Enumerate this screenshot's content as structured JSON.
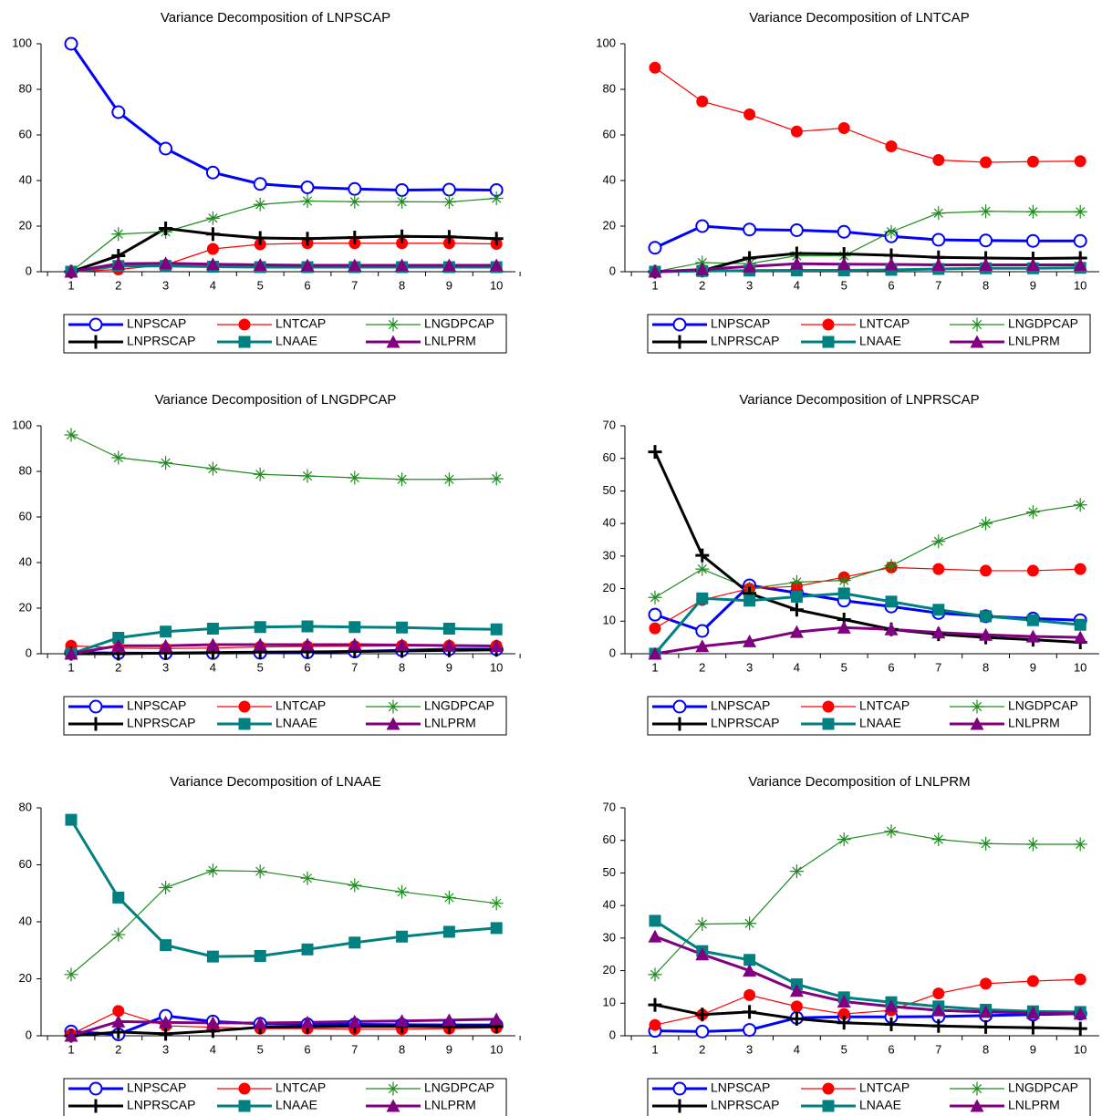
{
  "chart_data": [
    {
      "type": "line",
      "title": "Variance Decomposition of LNPSCAP",
      "categories": [
        1,
        2,
        3,
        4,
        5,
        6,
        7,
        8,
        9,
        10
      ],
      "ylim": [
        0,
        100
      ],
      "yticks": [
        0,
        20,
        40,
        60,
        80,
        100
      ],
      "series": [
        {
          "name": "LNPSCAP",
          "color": "#0000ff",
          "marker": "circle-open",
          "linewidth": 3,
          "values": [
            100,
            70,
            54,
            43.5,
            38.5,
            37,
            36.3,
            35.8,
            36,
            35.8
          ]
        },
        {
          "name": "LNTCAP",
          "color": "#ff0000",
          "marker": "circle",
          "linewidth": 1.2,
          "values": [
            0,
            1,
            3,
            10,
            12,
            12.5,
            12.5,
            12.5,
            12.5,
            12.2
          ]
        },
        {
          "name": "LNGDPCAP",
          "color": "#1e8c1e",
          "marker": "star",
          "linewidth": 1.2,
          "values": [
            0,
            16.5,
            17.5,
            23.5,
            29.5,
            31,
            30.7,
            30.7,
            30.6,
            32.2
          ]
        },
        {
          "name": "LNPRSCAP",
          "color": "#000000",
          "marker": "plus",
          "linewidth": 3,
          "values": [
            0,
            7,
            19,
            16.5,
            14.8,
            14.5,
            15,
            15.5,
            15.3,
            14.5
          ]
        },
        {
          "name": "LNAAE",
          "color": "#008080",
          "marker": "square",
          "linewidth": 3,
          "values": [
            0,
            2.5,
            2.5,
            2.2,
            2,
            2,
            2,
            2,
            2,
            2
          ]
        },
        {
          "name": "LNLPRM",
          "color": "#800080",
          "marker": "triangle",
          "linewidth": 3,
          "values": [
            0,
            3.5,
            3.7,
            3.3,
            3,
            2.8,
            2.8,
            2.8,
            2.8,
            2.8
          ]
        }
      ]
    },
    {
      "type": "line",
      "title": "Variance Decomposition of LNTCAP",
      "categories": [
        1,
        2,
        3,
        4,
        5,
        6,
        7,
        8,
        9,
        10
      ],
      "ylim": [
        0,
        100
      ],
      "yticks": [
        0,
        20,
        40,
        60,
        80,
        100
      ],
      "series": [
        {
          "name": "LNPSCAP",
          "color": "#0000ff",
          "marker": "circle-open",
          "linewidth": 3,
          "values": [
            10.5,
            20,
            18.5,
            18.2,
            17.5,
            15.5,
            14,
            13.7,
            13.5,
            13.5
          ]
        },
        {
          "name": "LNTCAP",
          "color": "#ff0000",
          "marker": "circle",
          "linewidth": 1.2,
          "values": [
            89.5,
            74.7,
            69,
            61.5,
            63,
            55,
            49,
            48,
            48.3,
            48.5
          ]
        },
        {
          "name": "LNGDPCAP",
          "color": "#1e8c1e",
          "marker": "star",
          "linewidth": 1.2,
          "values": [
            0,
            4,
            3.5,
            7,
            7,
            17.5,
            25.7,
            26.5,
            26.3,
            26.3
          ]
        },
        {
          "name": "LNPRSCAP",
          "color": "#000000",
          "marker": "plus",
          "linewidth": 3,
          "values": [
            0,
            0.5,
            6,
            8,
            7.8,
            7.2,
            6.3,
            6,
            5.8,
            6
          ]
        },
        {
          "name": "LNAAE",
          "color": "#008080",
          "marker": "square",
          "linewidth": 3,
          "values": [
            0,
            0.3,
            0.5,
            0.6,
            0.6,
            0.8,
            1.2,
            1.5,
            1.5,
            1.7
          ]
        },
        {
          "name": "LNLPRM",
          "color": "#800080",
          "marker": "triangle",
          "linewidth": 3,
          "values": [
            0,
            1,
            2.3,
            3.5,
            3.3,
            3.2,
            3,
            3,
            3,
            3
          ]
        }
      ]
    },
    {
      "type": "line",
      "title": "Variance Decomposition of LNGDPCAP",
      "categories": [
        1,
        2,
        3,
        4,
        5,
        6,
        7,
        8,
        9,
        10
      ],
      "ylim": [
        0,
        100
      ],
      "yticks": [
        0,
        20,
        40,
        60,
        80,
        100
      ],
      "series": [
        {
          "name": "LNPSCAP",
          "color": "#0000ff",
          "marker": "circle-open",
          "linewidth": 3,
          "values": [
            0.5,
            0.3,
            0.2,
            0.3,
            0.4,
            0.6,
            1,
            1.5,
            2,
            2
          ]
        },
        {
          "name": "LNTCAP",
          "color": "#ff0000",
          "marker": "circle",
          "linewidth": 1.2,
          "values": [
            3.5,
            2.5,
            2.3,
            2.5,
            3,
            3.2,
            3.3,
            3.5,
            3.5,
            3.5
          ]
        },
        {
          "name": "LNGDPCAP",
          "color": "#1e8c1e",
          "marker": "star",
          "linewidth": 1.2,
          "values": [
            96,
            86,
            83.7,
            81.2,
            78.7,
            78,
            77.2,
            76.5,
            76.5,
            76.8
          ]
        },
        {
          "name": "LNPRSCAP",
          "color": "#000000",
          "marker": "plus",
          "linewidth": 3,
          "values": [
            0,
            0,
            0.3,
            0.5,
            0.7,
            0.8,
            1,
            1.2,
            1.5,
            1.7
          ]
        },
        {
          "name": "LNAAE",
          "color": "#008080",
          "marker": "square",
          "linewidth": 3,
          "values": [
            0,
            7,
            9.7,
            11,
            11.7,
            12,
            11.7,
            11.5,
            11,
            10.7
          ]
        },
        {
          "name": "LNLPRM",
          "color": "#800080",
          "marker": "triangle",
          "linewidth": 3,
          "values": [
            0,
            3.5,
            3.5,
            4,
            4,
            4,
            4,
            3.8,
            3.6,
            3.4
          ]
        }
      ]
    },
    {
      "type": "line",
      "title": "Variance Decomposition of LNPRSCAP",
      "categories": [
        1,
        2,
        3,
        4,
        5,
        6,
        7,
        8,
        9,
        10
      ],
      "ylim": [
        0,
        70
      ],
      "yticks": [
        0,
        10,
        20,
        30,
        40,
        50,
        60,
        70
      ],
      "series": [
        {
          "name": "LNPSCAP",
          "color": "#0000ff",
          "marker": "circle-open",
          "linewidth": 3,
          "values": [
            12,
            7,
            21,
            18.7,
            16.3,
            14.5,
            12.5,
            11.5,
            10.8,
            10.3
          ]
        },
        {
          "name": "LNTCAP",
          "color": "#ff0000",
          "marker": "circle",
          "linewidth": 1.2,
          "values": [
            7.8,
            16.5,
            20,
            20.7,
            23.5,
            26.5,
            26,
            25.5,
            25.5,
            26
          ]
        },
        {
          "name": "LNGDPCAP",
          "color": "#1e8c1e",
          "marker": "star",
          "linewidth": 1.2,
          "values": [
            17.3,
            26,
            20,
            22,
            22.5,
            27,
            34.5,
            40,
            43.5,
            45.7
          ]
        },
        {
          "name": "LNPRSCAP",
          "color": "#000000",
          "marker": "plus",
          "linewidth": 3,
          "values": [
            62,
            30.2,
            18.5,
            13.5,
            10.5,
            7.5,
            6,
            5,
            4.3,
            3.5
          ]
        },
        {
          "name": "LNAAE",
          "color": "#008080",
          "marker": "square",
          "linewidth": 3,
          "values": [
            0,
            17,
            16.3,
            17.5,
            18.5,
            16,
            13.5,
            11.5,
            10.3,
            8.9
          ]
        },
        {
          "name": "LNLPRM",
          "color": "#800080",
          "marker": "triangle",
          "linewidth": 3,
          "values": [
            0,
            2.3,
            3.8,
            6.7,
            8,
            7.5,
            6.5,
            5.8,
            5.3,
            5
          ]
        }
      ]
    },
    {
      "type": "line",
      "title": "Variance Decomposition of LNAAE",
      "categories": [
        1,
        2,
        3,
        4,
        5,
        6,
        7,
        8,
        9,
        10
      ],
      "ylim": [
        0,
        80
      ],
      "yticks": [
        0,
        20,
        40,
        60,
        80
      ],
      "series": [
        {
          "name": "LNPSCAP",
          "color": "#0000ff",
          "marker": "circle-open",
          "linewidth": 3,
          "values": [
            1.5,
            0.5,
            7,
            5,
            4.2,
            4,
            4,
            3.9,
            3.8,
            3.8
          ]
        },
        {
          "name": "LNTCAP",
          "color": "#ff0000",
          "marker": "circle",
          "linewidth": 1.2,
          "values": [
            0.5,
            8.7,
            3.5,
            3,
            2.5,
            2.5,
            2.3,
            2.3,
            2.5,
            2.8
          ]
        },
        {
          "name": "LNGDPCAP",
          "color": "#1e8c1e",
          "marker": "star",
          "linewidth": 1.2,
          "values": [
            21.5,
            35.5,
            52,
            58,
            57.7,
            55.3,
            52.8,
            50.5,
            48.5,
            46.5
          ]
        },
        {
          "name": "LNPRSCAP",
          "color": "#000000",
          "marker": "plus",
          "linewidth": 3,
          "values": [
            0,
            1.3,
            0.7,
            1.7,
            3,
            3.2,
            3.3,
            3.3,
            3.2,
            3.2
          ]
        },
        {
          "name": "LNAAE",
          "color": "#008080",
          "marker": "square",
          "linewidth": 3,
          "values": [
            75.8,
            48.5,
            31.8,
            27.8,
            28,
            30.3,
            32.7,
            34.8,
            36.5,
            37.8
          ]
        },
        {
          "name": "LNLPRM",
          "color": "#800080",
          "marker": "triangle",
          "linewidth": 3,
          "values": [
            0,
            5,
            4.7,
            4.5,
            4.5,
            4.7,
            5,
            5.2,
            5.5,
            5.8
          ]
        }
      ]
    },
    {
      "type": "line",
      "title": "Variance Decomposition of LNLPRM",
      "categories": [
        1,
        2,
        3,
        4,
        5,
        6,
        7,
        8,
        9,
        10
      ],
      "ylim": [
        0,
        70
      ],
      "yticks": [
        0,
        10,
        20,
        30,
        40,
        50,
        60,
        70
      ],
      "series": [
        {
          "name": "LNPSCAP",
          "color": "#0000ff",
          "marker": "circle-open",
          "linewidth": 3,
          "values": [
            1.5,
            1.3,
            1.8,
            5.5,
            5.8,
            5.8,
            5.9,
            6.2,
            6.5,
            6.8
          ]
        },
        {
          "name": "LNTCAP",
          "color": "#ff0000",
          "marker": "circle",
          "linewidth": 1.2,
          "values": [
            3.3,
            6.5,
            12.5,
            9,
            6.7,
            7.8,
            13,
            16,
            16.8,
            17.3
          ]
        },
        {
          "name": "LNGDPCAP",
          "color": "#1e8c1e",
          "marker": "star",
          "linewidth": 1.2,
          "values": [
            18.8,
            34.3,
            34.5,
            50.5,
            60.3,
            62.8,
            60.3,
            59,
            58.8,
            58.8
          ]
        },
        {
          "name": "LNPRSCAP",
          "color": "#000000",
          "marker": "plus",
          "linewidth": 3,
          "values": [
            9.5,
            6.5,
            7.3,
            5.2,
            4,
            3.5,
            3,
            2.7,
            2.5,
            2.2
          ]
        },
        {
          "name": "LNAAE",
          "color": "#008080",
          "marker": "square",
          "linewidth": 3,
          "values": [
            35.3,
            26,
            23.3,
            15.8,
            11.8,
            10.3,
            9,
            8,
            7.5,
            7.3
          ]
        },
        {
          "name": "LNLPRM",
          "color": "#800080",
          "marker": "triangle",
          "linewidth": 3,
          "values": [
            30.5,
            25,
            20,
            13.8,
            10.5,
            9,
            7.8,
            7.3,
            7,
            6.8
          ]
        }
      ]
    }
  ]
}
